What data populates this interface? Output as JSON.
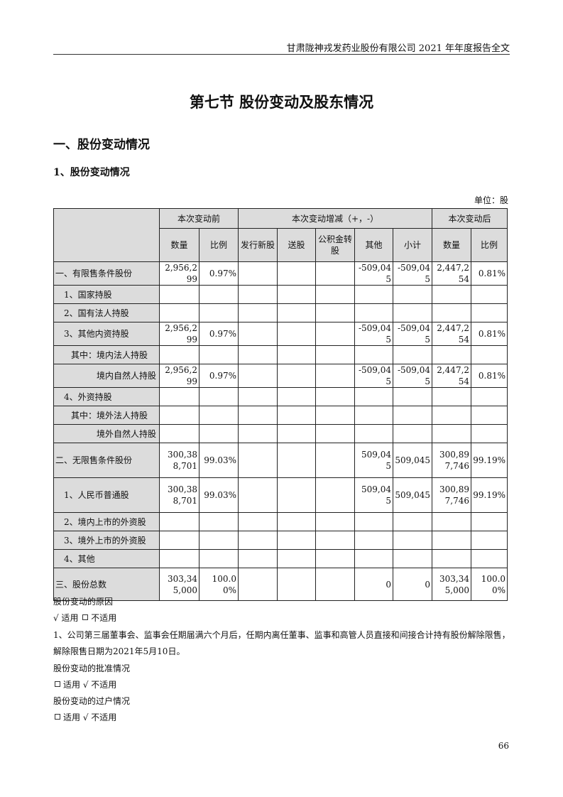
{
  "header": {
    "text": "甘肃陇神戎发药业股份有限公司 2021 年年度报告全文"
  },
  "title": "第七节  股份变动及股东情况",
  "section1": "一、股份变动情况",
  "section1_1": "1、股份变动情况",
  "unit": "单位：股",
  "table": {
    "group_headers": [
      "本次变动前",
      "本次变动增减（+，-）",
      "本次变动后"
    ],
    "sub_headers": [
      "数量",
      "比例",
      "发行新股",
      "送股",
      "公积金转股",
      "其他",
      "小计",
      "数量",
      "比例"
    ],
    "rows": [
      {
        "label": "一、有限售条件股份",
        "level": 0,
        "cells": [
          "2,956,299",
          "0.97%",
          "",
          "",
          "",
          "-509,045",
          "-509,045",
          "2,447,254",
          "0.81%"
        ]
      },
      {
        "label": "1、国家持股",
        "level": 1,
        "cells": [
          "",
          "",
          "",
          "",
          "",
          "",
          "",
          "",
          ""
        ]
      },
      {
        "label": "2、国有法人持股",
        "level": 1,
        "cells": [
          "",
          "",
          "",
          "",
          "",
          "",
          "",
          "",
          ""
        ]
      },
      {
        "label": "3、其他内资持股",
        "level": 1,
        "cells": [
          "2,956,299",
          "0.97%",
          "",
          "",
          "",
          "-509,045",
          "-509,045",
          "2,447,254",
          "0.81%"
        ]
      },
      {
        "label": "其中：境内法人持股",
        "level": 2,
        "cells": [
          "",
          "",
          "",
          "",
          "",
          "",
          "",
          "",
          ""
        ]
      },
      {
        "label": "境内自然人持股",
        "level": 3,
        "cells": [
          "2,956,299",
          "0.97%",
          "",
          "",
          "",
          "-509,045",
          "-509,045",
          "2,447,254",
          "0.81%"
        ]
      },
      {
        "label": "4、外资持股",
        "level": 1,
        "cells": [
          "",
          "",
          "",
          "",
          "",
          "",
          "",
          "",
          ""
        ]
      },
      {
        "label": "其中：境外法人持股",
        "level": 2,
        "cells": [
          "",
          "",
          "",
          "",
          "",
          "",
          "",
          "",
          ""
        ]
      },
      {
        "label": "境外自然人持股",
        "level": 3,
        "cells": [
          "",
          "",
          "",
          "",
          "",
          "",
          "",
          "",
          ""
        ]
      },
      {
        "label": "二、无限售条件股份",
        "level": 0,
        "cells": [
          "300,388,701",
          "99.03%",
          "",
          "",
          "",
          "509,045",
          "509,045",
          "300,897,746",
          "99.19%"
        ]
      },
      {
        "label": "1、人民币普通股",
        "level": 1,
        "cells": [
          "300,388,701",
          "99.03%",
          "",
          "",
          "",
          "509,045",
          "509,045",
          "300,897,746",
          "99.19%"
        ]
      },
      {
        "label": "2、境内上市的外资股",
        "level": 1,
        "cells": [
          "",
          "",
          "",
          "",
          "",
          "",
          "",
          "",
          ""
        ]
      },
      {
        "label": "3、境外上市的外资股",
        "level": 1,
        "cells": [
          "",
          "",
          "",
          "",
          "",
          "",
          "",
          "",
          ""
        ]
      },
      {
        "label": "4、其他",
        "level": 1,
        "cells": [
          "",
          "",
          "",
          "",
          "",
          "",
          "",
          "",
          ""
        ]
      },
      {
        "label": "三、股份总数",
        "level": 0,
        "cells": [
          "303,345,000",
          "100.00%",
          "",
          "",
          "",
          "0",
          "0",
          "303,345,000",
          "100.00%"
        ]
      }
    ]
  },
  "paragraphs": {
    "reason_title": "股份变动的原因",
    "reason_applicable": "√ 适用",
    "reason_not_applicable": "不适用",
    "reason_text_1": "1、公司第三届董事会、监事会任期届满六个月后，任期内离任董事、监事和高管人员直接和间接合计持有股份解除限售，",
    "reason_text_2": "解除限售日期为2021年5月10日。",
    "approval_title": "股份变动的批准情况",
    "approval_applicable": "适用",
    "approval_not_applicable": "√ 不适用",
    "transfer_title": "股份变动的过户情况",
    "transfer_applicable": "适用",
    "transfer_not_applicable": "√ 不适用"
  },
  "page_number": "66"
}
